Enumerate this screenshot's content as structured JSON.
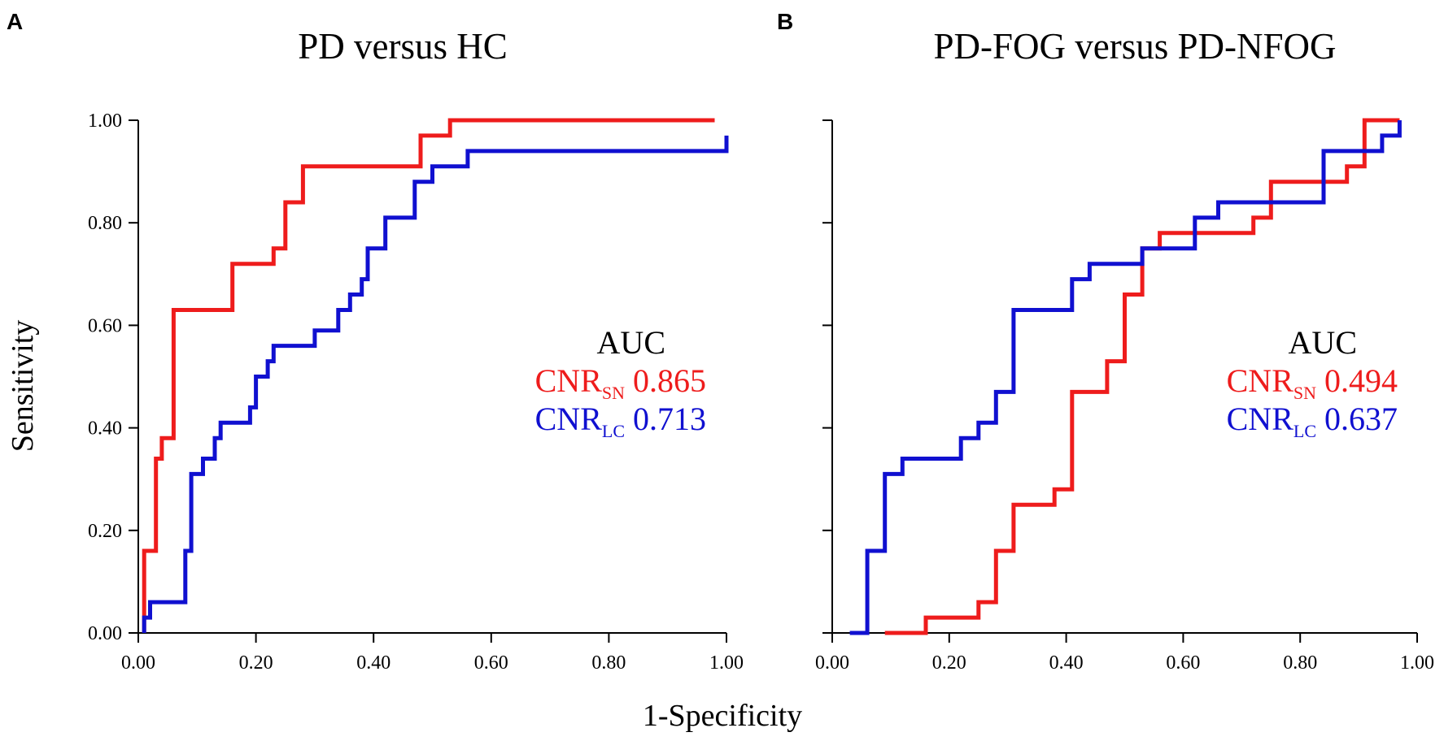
{
  "figure": {
    "shared_xlabel": "1-Specificity",
    "shared_ylabel": "Sensitivity"
  },
  "chart_data": [
    {
      "panel_label": "A",
      "type": "line",
      "title": "PD versus HC",
      "xlabel": "1-Specificity",
      "ylabel": "Sensitivity",
      "xlim": [
        0,
        1
      ],
      "ylim": [
        0,
        1
      ],
      "xticks": [
        "0.00",
        "0.20",
        "0.40",
        "0.60",
        "0.80",
        "1.00"
      ],
      "yticks": [
        "0.00",
        "0.20",
        "0.40",
        "0.60",
        "0.80",
        "1.00"
      ],
      "legend": {
        "heading": "AUC",
        "entries": [
          {
            "base": "CNR",
            "sub": "SN",
            "value": "0.865",
            "color": "#ee1c1c"
          },
          {
            "base": "CNR",
            "sub": "LC",
            "value": "0.713",
            "color": "#1010d0"
          }
        ]
      },
      "series": [
        {
          "name": "CNR_SN",
          "color": "#ee1c1c",
          "x": [
            0.01,
            0.01,
            0.03,
            0.03,
            0.04,
            0.04,
            0.06,
            0.06,
            0.16,
            0.16,
            0.23,
            0.23,
            0.25,
            0.25,
            0.28,
            0.28,
            0.48,
            0.48,
            0.53,
            0.53,
            0.98
          ],
          "y": [
            0.0,
            0.16,
            0.16,
            0.34,
            0.34,
            0.38,
            0.38,
            0.63,
            0.63,
            0.72,
            0.72,
            0.75,
            0.75,
            0.84,
            0.84,
            0.91,
            0.91,
            0.97,
            0.97,
            1.0,
            1.0
          ]
        },
        {
          "name": "CNR_LC",
          "color": "#1010d0",
          "x": [
            0.01,
            0.01,
            0.02,
            0.02,
            0.08,
            0.08,
            0.09,
            0.09,
            0.11,
            0.11,
            0.13,
            0.13,
            0.14,
            0.14,
            0.19,
            0.19,
            0.2,
            0.2,
            0.22,
            0.22,
            0.23,
            0.23,
            0.3,
            0.3,
            0.34,
            0.34,
            0.36,
            0.36,
            0.38,
            0.38,
            0.39,
            0.39,
            0.42,
            0.42,
            0.47,
            0.47,
            0.5,
            0.5,
            0.56,
            0.56,
            1.0,
            1.0
          ],
          "y": [
            0.0,
            0.03,
            0.03,
            0.06,
            0.06,
            0.16,
            0.16,
            0.31,
            0.31,
            0.34,
            0.34,
            0.38,
            0.38,
            0.41,
            0.41,
            0.44,
            0.44,
            0.5,
            0.5,
            0.53,
            0.53,
            0.56,
            0.56,
            0.59,
            0.59,
            0.63,
            0.63,
            0.66,
            0.66,
            0.69,
            0.69,
            0.75,
            0.75,
            0.81,
            0.81,
            0.88,
            0.88,
            0.91,
            0.91,
            0.94,
            0.94,
            0.97
          ]
        }
      ]
    },
    {
      "panel_label": "B",
      "type": "line",
      "title": "PD-FOG versus PD-NFOG",
      "xlabel": "1-Specificity",
      "ylabel": "Sensitivity",
      "xlim": [
        0,
        1
      ],
      "ylim": [
        0,
        1
      ],
      "xticks": [
        "0.00",
        "0.20",
        "0.40",
        "0.60",
        "0.80",
        "1.00"
      ],
      "yticks": [],
      "legend": {
        "heading": "AUC",
        "entries": [
          {
            "base": "CNR",
            "sub": "SN",
            "value": "0.494",
            "color": "#ee1c1c"
          },
          {
            "base": "CNR",
            "sub": "LC",
            "value": "0.637",
            "color": "#1010d0"
          }
        ]
      },
      "series": [
        {
          "name": "CNR_SN",
          "color": "#ee1c1c",
          "x": [
            0.09,
            0.16,
            0.16,
            0.25,
            0.25,
            0.28,
            0.28,
            0.31,
            0.31,
            0.38,
            0.38,
            0.41,
            0.41,
            0.47,
            0.47,
            0.5,
            0.5,
            0.53,
            0.53,
            0.56,
            0.56,
            0.72,
            0.72,
            0.75,
            0.75,
            0.88,
            0.88,
            0.91,
            0.91,
            0.97
          ],
          "y": [
            0.0,
            0.0,
            0.03,
            0.03,
            0.06,
            0.06,
            0.16,
            0.16,
            0.25,
            0.25,
            0.28,
            0.28,
            0.47,
            0.47,
            0.53,
            0.53,
            0.66,
            0.66,
            0.75,
            0.75,
            0.78,
            0.78,
            0.81,
            0.81,
            0.88,
            0.88,
            0.91,
            0.91,
            1.0,
            1.0
          ]
        },
        {
          "name": "CNR_LC",
          "color": "#1010d0",
          "x": [
            0.03,
            0.06,
            0.06,
            0.09,
            0.09,
            0.12,
            0.12,
            0.22,
            0.22,
            0.25,
            0.25,
            0.28,
            0.28,
            0.31,
            0.31,
            0.41,
            0.41,
            0.44,
            0.44,
            0.53,
            0.53,
            0.62,
            0.62,
            0.66,
            0.66,
            0.84,
            0.84,
            0.94,
            0.94,
            0.97,
            0.97
          ],
          "y": [
            0.0,
            0.0,
            0.16,
            0.16,
            0.31,
            0.31,
            0.34,
            0.34,
            0.38,
            0.38,
            0.41,
            0.41,
            0.47,
            0.47,
            0.63,
            0.63,
            0.69,
            0.69,
            0.72,
            0.72,
            0.75,
            0.75,
            0.81,
            0.81,
            0.84,
            0.84,
            0.94,
            0.94,
            0.97,
            0.97,
            1.0
          ]
        }
      ]
    }
  ]
}
